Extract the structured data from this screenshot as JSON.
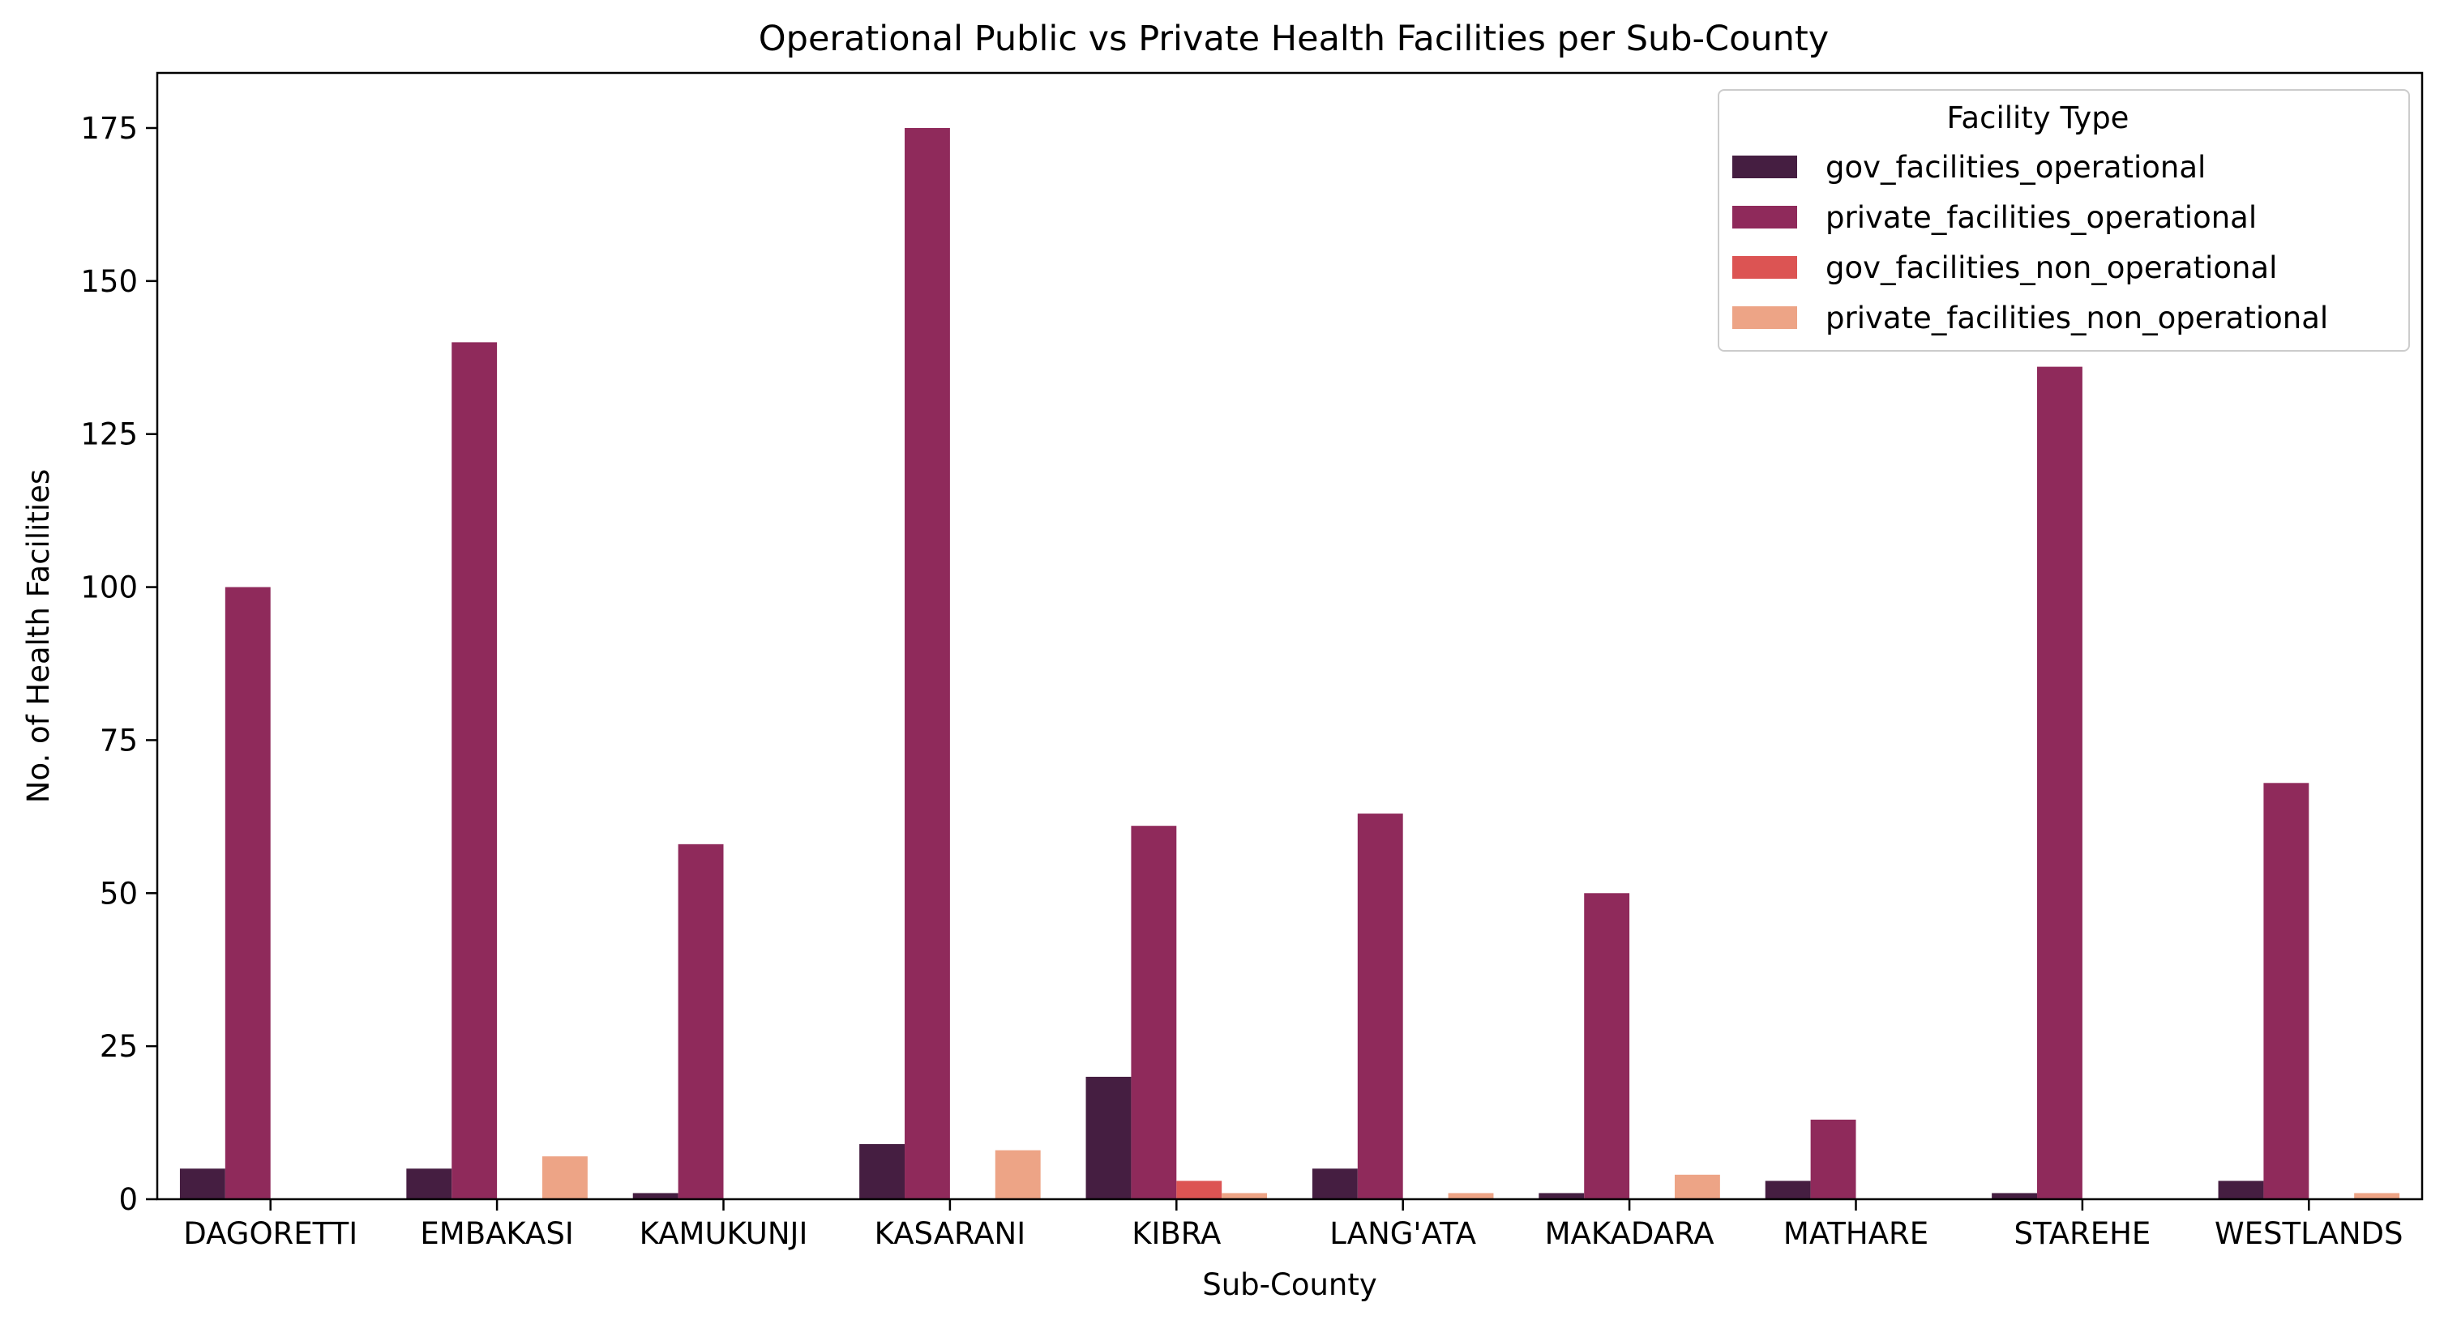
{
  "chart_data": {
    "type": "bar",
    "title": "Operational Public vs Private Health Facilities per Sub-County",
    "xlabel": "Sub-County",
    "ylabel": "No. of Health Facilities",
    "ylim": [
      0,
      184
    ],
    "yticks": [
      0,
      25,
      50,
      75,
      100,
      125,
      150,
      175
    ],
    "grid": false,
    "legend": {
      "title": "Facility Type",
      "placement": "top-right"
    },
    "categories": [
      "DAGORETTI",
      "EMBAKASI",
      "KAMUKUNJI",
      "KASARANI",
      "KIBRA",
      "LANG'ATA",
      "MAKADARA",
      "MATHARE",
      "STAREHE",
      "WESTLANDS"
    ],
    "series": [
      {
        "name": "gov_facilities_operational",
        "color": "#451e41",
        "values": [
          5,
          5,
          1,
          9,
          20,
          5,
          1,
          3,
          1,
          3
        ]
      },
      {
        "name": "private_facilities_operational",
        "color": "#8f2a5b",
        "values": [
          100,
          140,
          58,
          175,
          61,
          63,
          50,
          13,
          136,
          68
        ]
      },
      {
        "name": "gov_facilities_non_operational",
        "color": "#dc5453",
        "values": [
          0,
          0,
          0,
          0,
          3,
          0,
          0,
          0,
          0,
          0
        ]
      },
      {
        "name": "private_facilities_non_operational",
        "color": "#eda486",
        "values": [
          0,
          7,
          0,
          8,
          1,
          1,
          4,
          0,
          0,
          1
        ]
      }
    ]
  }
}
